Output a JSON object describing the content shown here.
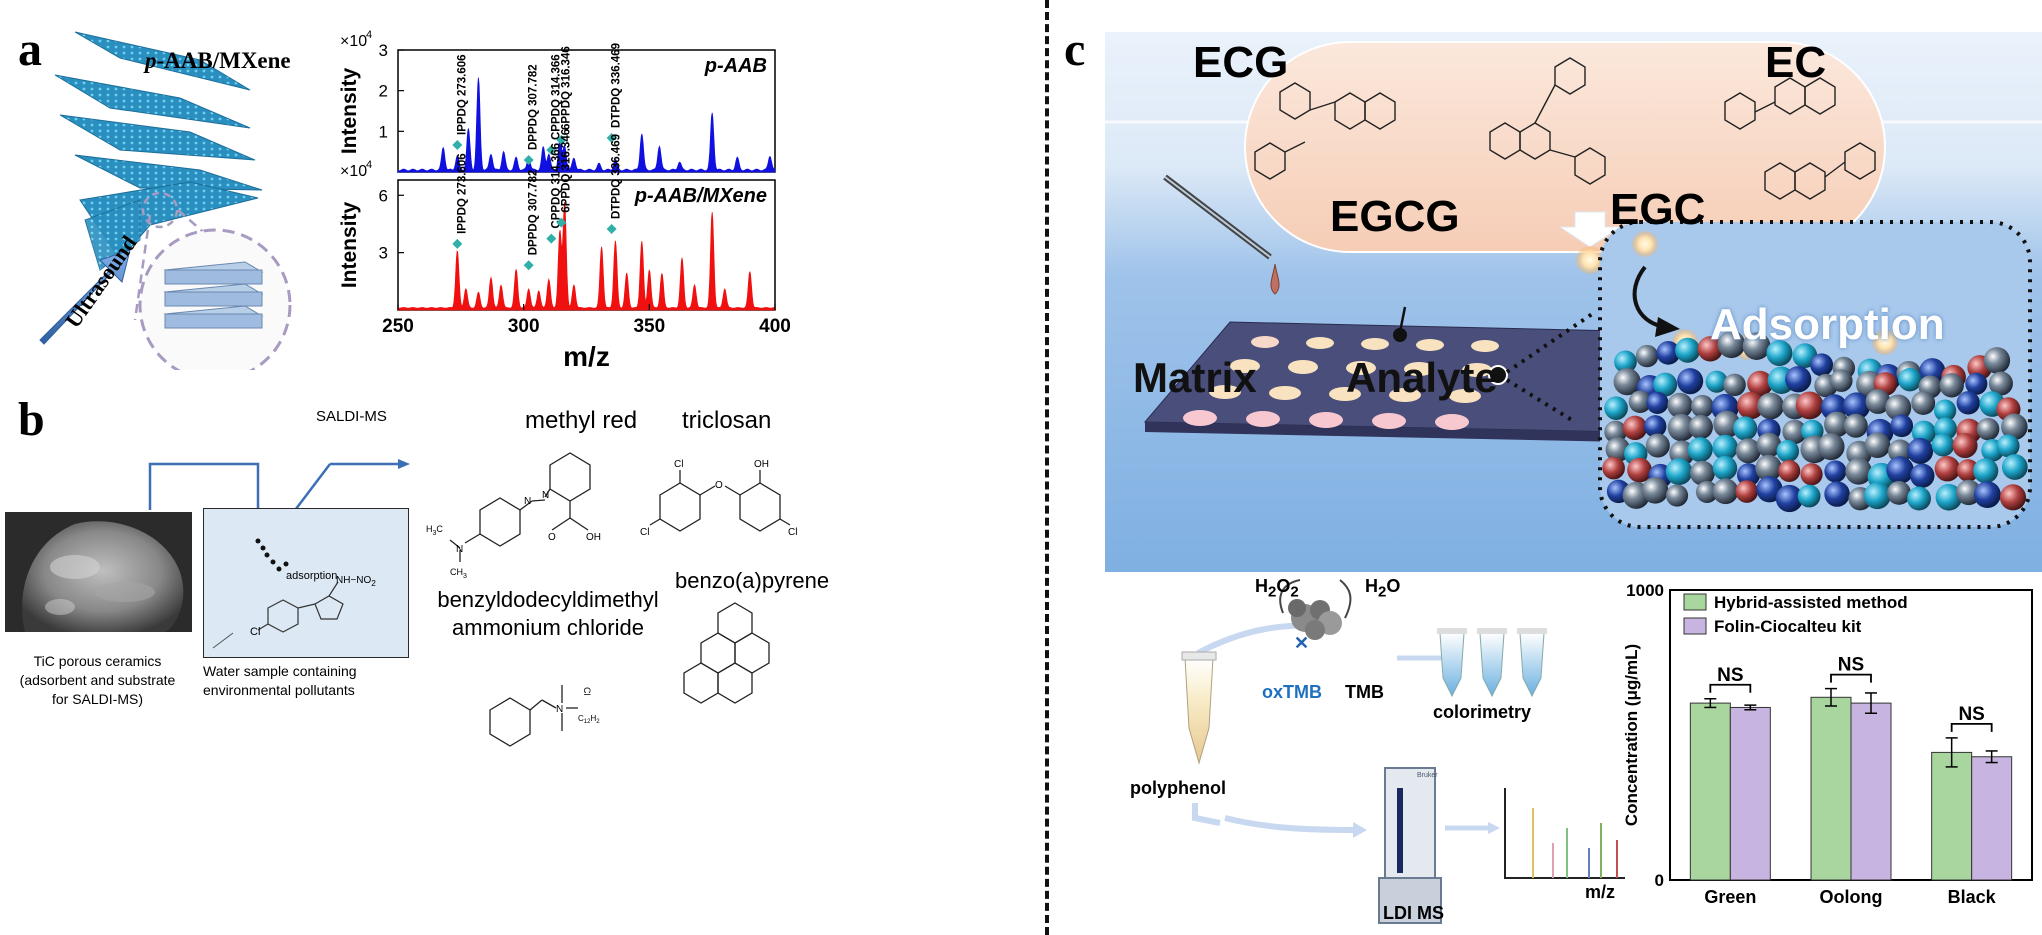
{
  "panel_labels": {
    "a": "a",
    "b": "b",
    "c": "c"
  },
  "panel_a": {
    "material_label": "p-AAB/MXene",
    "ultrasound_label": "Ultrasound"
  },
  "chart_data": [
    {
      "type": "line",
      "title": "p-AAB",
      "ylabel": "Intensity",
      "multiplier": "×10",
      "exponent": "4",
      "xlim": [
        250,
        400
      ],
      "ylim": [
        0,
        3
      ],
      "yticks": [
        "1",
        "2",
        "3"
      ],
      "color": "#1010e0",
      "peaks": [
        {
          "x": 268,
          "y": 0.55
        },
        {
          "x": 273.6,
          "y": 0.35
        },
        {
          "x": 278,
          "y": 1.0
        },
        {
          "x": 282,
          "y": 2.25
        },
        {
          "x": 287,
          "y": 0.4
        },
        {
          "x": 292,
          "y": 0.45
        },
        {
          "x": 297,
          "y": 0.3
        },
        {
          "x": 302,
          "y": 0.3
        },
        {
          "x": 307.8,
          "y": 0.55
        },
        {
          "x": 310,
          "y": 0.4
        },
        {
          "x": 314.4,
          "y": 0.75
        },
        {
          "x": 316.3,
          "y": 0.6
        },
        {
          "x": 320,
          "y": 0.3
        },
        {
          "x": 330,
          "y": 0.15
        },
        {
          "x": 336.5,
          "y": 0.25
        },
        {
          "x": 347,
          "y": 0.9
        },
        {
          "x": 354,
          "y": 0.6
        },
        {
          "x": 362,
          "y": 0.2
        },
        {
          "x": 375,
          "y": 1.4
        },
        {
          "x": 385,
          "y": 0.3
        },
        {
          "x": 398,
          "y": 0.35
        }
      ],
      "annotations": [
        {
          "label": "IPPDQ 273.606",
          "x": 273.6
        },
        {
          "label": "DPPDQ 307.782",
          "x": 302
        },
        {
          "label": "CPPDQ 314.366",
          "x": 311
        },
        {
          "label": "6PPDQ 316.346",
          "x": 315
        },
        {
          "label": "DTPDQ 336.469",
          "x": 335
        }
      ]
    },
    {
      "type": "line",
      "title": "p-AAB/MXene",
      "ylabel": "Intensity",
      "multiplier": "×10",
      "exponent": "4",
      "xlabel": "m/z",
      "xlim": [
        250,
        400
      ],
      "ylim": [
        0,
        6.8
      ],
      "xticks": [
        "250",
        "300",
        "350",
        "400"
      ],
      "yticks": [
        "3",
        "6"
      ],
      "color": "#f01010",
      "peaks": [
        {
          "x": 273.6,
          "y": 3.0
        },
        {
          "x": 277,
          "y": 1.0
        },
        {
          "x": 282,
          "y": 0.8
        },
        {
          "x": 287,
          "y": 1.6
        },
        {
          "x": 291,
          "y": 1.2
        },
        {
          "x": 297,
          "y": 2.0
        },
        {
          "x": 302,
          "y": 1.0
        },
        {
          "x": 306,
          "y": 0.9
        },
        {
          "x": 310,
          "y": 1.5
        },
        {
          "x": 314.4,
          "y": 4.0
        },
        {
          "x": 316.3,
          "y": 5.5
        },
        {
          "x": 320,
          "y": 1.2
        },
        {
          "x": 331,
          "y": 3.2
        },
        {
          "x": 336.5,
          "y": 3.5
        },
        {
          "x": 341,
          "y": 1.8
        },
        {
          "x": 347,
          "y": 3.5
        },
        {
          "x": 350,
          "y": 2.0
        },
        {
          "x": 355,
          "y": 1.8
        },
        {
          "x": 363,
          "y": 2.6
        },
        {
          "x": 368,
          "y": 1.2
        },
        {
          "x": 375,
          "y": 5.0
        },
        {
          "x": 380,
          "y": 1.0
        },
        {
          "x": 390,
          "y": 1.9
        }
      ],
      "annotations": [
        {
          "label": "IPPDQ 273.606",
          "x": 273.6
        },
        {
          "label": "DPPDQ 307.782",
          "x": 302
        },
        {
          "label": "CPPDQ 314.366",
          "x": 311
        },
        {
          "label": "6PPDQ 316.346",
          "x": 315
        },
        {
          "label": "DTPDQ 336.469",
          "x": 335
        }
      ]
    },
    {
      "type": "bar",
      "ylabel": "Concentration (μg/mL)",
      "ylim": [
        0,
        1000
      ],
      "yticks": [
        "0",
        "1000"
      ],
      "categories": [
        "Green",
        "Oolong",
        "Black"
      ],
      "series": [
        {
          "name": "Hybrid-assisted method",
          "color": "#a9d69e",
          "values": [
            610,
            630,
            440
          ],
          "errors": [
            15,
            30,
            50
          ]
        },
        {
          "name": "Folin-Ciocalteu kit",
          "color": "#c8b4e0",
          "values": [
            595,
            610,
            425
          ],
          "errors": [
            8,
            35,
            20
          ]
        }
      ],
      "significance": [
        "NS",
        "NS",
        "NS"
      ]
    }
  ],
  "panel_b": {
    "method": "SALDI-MS",
    "adsorption": "adsorption",
    "nitro_group": "NH−NO",
    "nitro_sub": "2",
    "ceramic_caption": [
      "TiC porous ceramics",
      "(adsorbent and substrate",
      "for SALDI-MS)"
    ],
    "water_caption": [
      "Water sample containing",
      "environmental pollutants"
    ],
    "compounds": {
      "methyl_red": "methyl red",
      "triclosan": "triclosan",
      "benzyl": [
        "benzyldodecyldimethyl",
        "ammonium chloride"
      ],
      "benzopyrene": "benzo(a)pyrene"
    },
    "atoms": {
      "cl": "Cl",
      "oh": "OH",
      "o": "O",
      "n": "N",
      "h3c": "H",
      "ch3": "CH",
      "c12h25": "C",
      "cl_minus": "Cl"
    }
  },
  "panel_c": {
    "catechins": [
      "ECG",
      "EC",
      "EGCG",
      "EGC"
    ],
    "matrix": "Matrix",
    "analyte": "Analyte",
    "adsorption": "Adsorption",
    "h2o2": "H",
    "h2o": "H",
    "oxtmb": "oxTMB",
    "tmb": "TMB",
    "colorimetry": "colorimetry",
    "polyphenol": "polyphenol",
    "ldi_ms": "LDI MS",
    "mz": "m/z",
    "bruker": "Bruker"
  }
}
